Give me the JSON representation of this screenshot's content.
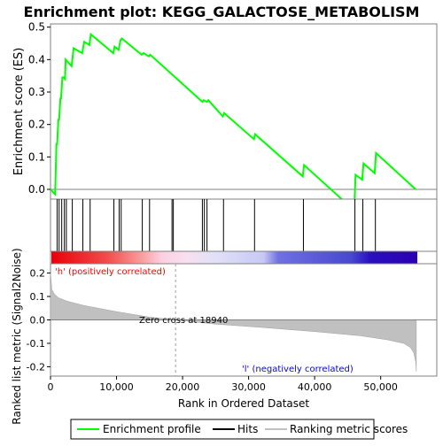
{
  "chart_data": {
    "type": "line",
    "title": "Enrichment plot: KEGG_GALACTOSE_METABOLISM",
    "colors": {
      "enrichment": "#00ff00",
      "hits": "#000000",
      "metric_fill": "#c0c0c0",
      "zero_line": "#808080",
      "pos_label": "#ff0000",
      "neg_label": "#0000ff"
    },
    "es_panel": {
      "ylabel": "Enrichment score (ES)",
      "ylim": [
        -0.03,
        0.51
      ],
      "yticks": [
        0.0,
        0.1,
        0.2,
        0.3,
        0.4,
        0.5
      ],
      "ytick_labels": [
        "0.0",
        "0.1",
        "0.2",
        "0.3",
        "0.4",
        "0.5"
      ],
      "series": [
        {
          "name": "Enrichment profile",
          "x": [
            0,
            700,
            900,
            1000,
            1200,
            1300,
            1500,
            1600,
            1800,
            2000,
            2200,
            2300,
            3200,
            3500,
            4800,
            5100,
            5900,
            6100,
            9500,
            9700,
            10300,
            10500,
            10600,
            10800,
            13800,
            14100,
            14900,
            15100,
            23000,
            23200,
            23700,
            23900,
            26100,
            26300,
            30800,
            31000,
            38200,
            38400,
            46000,
            46200,
            47200,
            47400,
            49100,
            49300,
            55300
          ],
          "y": [
            0.0,
            -0.015,
            0.14,
            0.14,
            0.215,
            0.215,
            0.28,
            0.28,
            0.345,
            0.345,
            0.34,
            0.4,
            0.38,
            0.435,
            0.42,
            0.455,
            0.445,
            0.478,
            0.42,
            0.44,
            0.43,
            0.45,
            0.46,
            0.465,
            0.415,
            0.42,
            0.41,
            0.415,
            0.27,
            0.275,
            0.27,
            0.275,
            0.225,
            0.235,
            0.155,
            0.17,
            0.04,
            0.075,
            -0.065,
            0.045,
            0.03,
            0.08,
            0.05,
            0.112,
            0.0
          ]
        }
      ]
    },
    "hits_panel": {
      "hit_positions": [
        1000,
        1300,
        1700,
        2100,
        2400,
        3300,
        4900,
        6000,
        9600,
        10400,
        10700,
        13900,
        15000,
        18400,
        18600,
        23000,
        23300,
        23700,
        26200,
        30900,
        38300,
        46100,
        47300,
        49200
      ]
    },
    "metric_panel": {
      "ylabel": "Ranked list metric (Signal2Noise)",
      "xlabel": "Rank in Ordered Dataset",
      "ylim": [
        -0.24,
        0.24
      ],
      "yticks": [
        -0.2,
        -0.1,
        0.0,
        0.1,
        0.2
      ],
      "ytick_labels": [
        "-0.2",
        "-0.1",
        "0.0",
        "0.1",
        "0.2"
      ],
      "xlim": [
        0,
        58500
      ],
      "xticks": [
        0,
        10000,
        20000,
        30000,
        40000,
        50000
      ],
      "xtick_labels": [
        "0",
        "10,000",
        "20,000",
        "30,000",
        "40,000",
        "50,000"
      ],
      "n_genes": 55400,
      "zero_cross": 18940,
      "zero_cross_label": "Zero cross at 18940",
      "pos_label": "'h' (positively correlated)",
      "neg_label": "'l' (negatively correlated)",
      "metric_curve": {
        "x": [
          0,
          200,
          600,
          1200,
          2500,
          5000,
          10000,
          15000,
          18940,
          25000,
          32000,
          40000,
          47000,
          51000,
          53500,
          54500,
          55000,
          55300,
          55400
        ],
        "y": [
          0.2,
          0.13,
          0.11,
          0.095,
          0.08,
          0.062,
          0.035,
          0.012,
          0.0,
          -0.018,
          -0.032,
          -0.05,
          -0.068,
          -0.085,
          -0.1,
          -0.118,
          -0.14,
          -0.18,
          -0.22
        ]
      }
    },
    "legend": {
      "items": [
        {
          "label": "Enrichment profile",
          "color": "#00ff00"
        },
        {
          "label": "Hits",
          "color": "#000000"
        },
        {
          "label": "Ranking metric scores",
          "color": "#c0c0c0"
        }
      ]
    }
  }
}
